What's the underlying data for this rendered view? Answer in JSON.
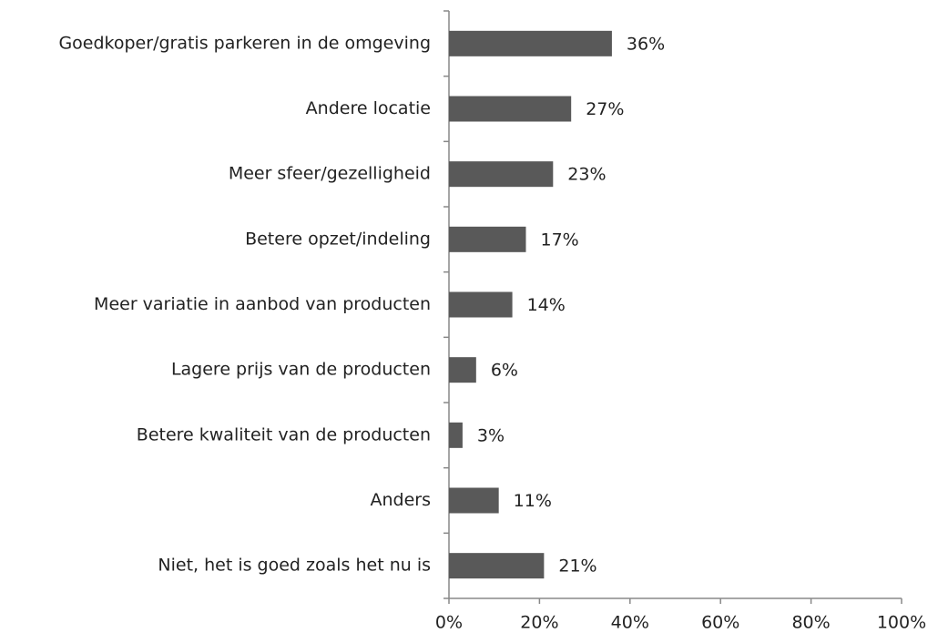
{
  "chart_data": {
    "type": "barh",
    "categories": [
      "Goedkoper/gratis parkeren in de omgeving",
      "Andere locatie",
      "Meer sfeer/gezelligheid",
      "Betere opzet/indeling",
      "Meer variatie in aanbod van producten",
      "Lagere prijs van de producten",
      "Betere kwaliteit van de producten",
      "Anders",
      "Niet, het is goed zoals het nu is"
    ],
    "values": [
      36,
      27,
      23,
      17,
      14,
      6,
      3,
      11,
      21
    ],
    "value_labels": [
      "36%",
      "27%",
      "23%",
      "17%",
      "14%",
      "6%",
      "3%",
      "11%",
      "21%"
    ],
    "color": "#595959",
    "xlim": [
      0,
      100
    ],
    "xticks": [
      {
        "value": 0,
        "label": "0%"
      },
      {
        "value": 20,
        "label": "20%"
      },
      {
        "value": 40,
        "label": "40%"
      },
      {
        "value": 60,
        "label": "60%"
      },
      {
        "value": 80,
        "label": "80%"
      },
      {
        "value": 100,
        "label": "100%"
      }
    ],
    "grid": false
  }
}
